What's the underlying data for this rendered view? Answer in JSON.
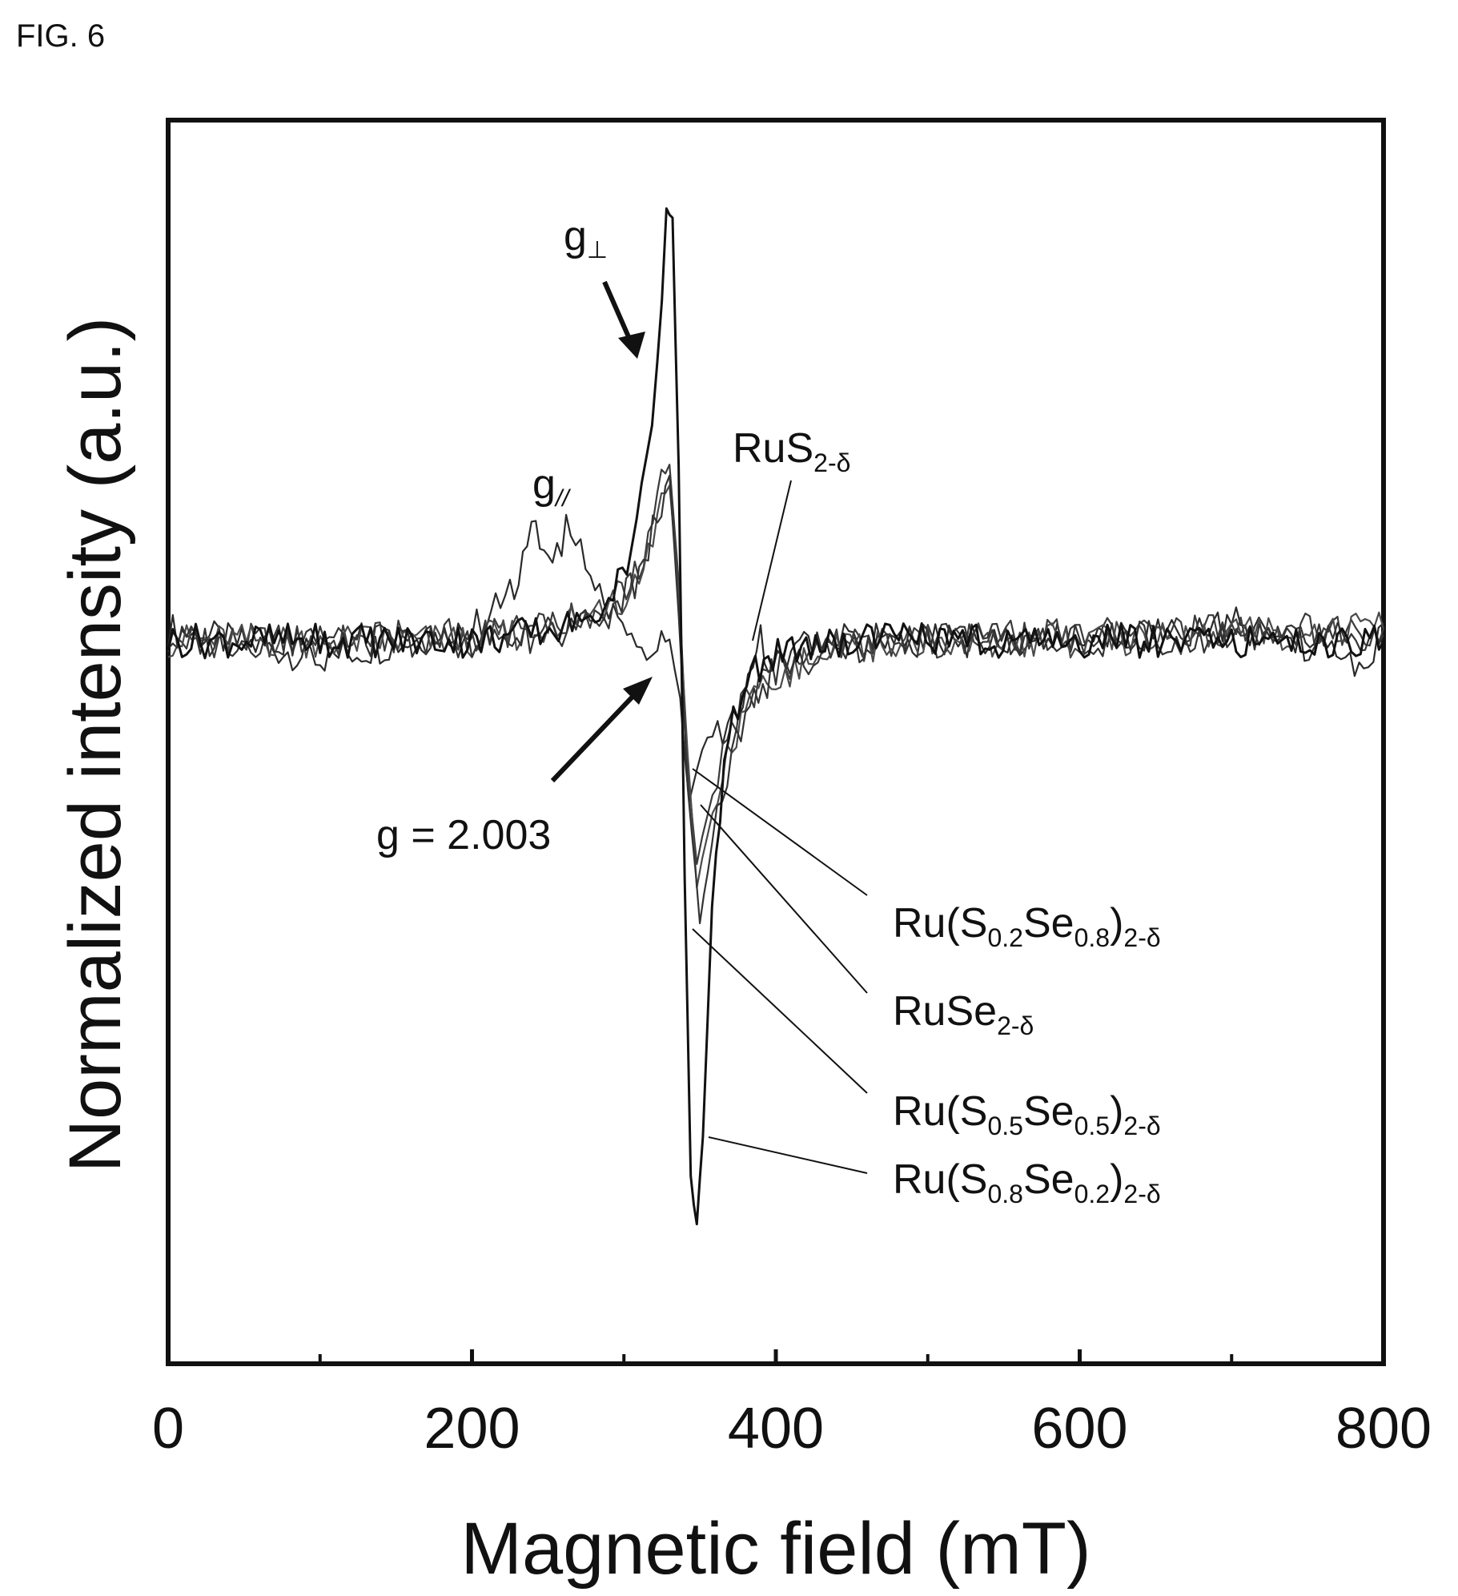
{
  "figure": {
    "label": "FIG. 6"
  },
  "chart_data": {
    "type": "line",
    "xlabel": "Magnetic field (mT)",
    "ylabel": "Normalized intensity (a.u.)",
    "xlim": [
      0,
      800
    ],
    "ylim": [
      -1.0,
      1.0
    ],
    "x_ticks": [
      0,
      200,
      400,
      600,
      800
    ],
    "x_tick_labels": [
      "0",
      "200",
      "400",
      "600",
      "800"
    ],
    "x_minor_ticks": [
      100,
      300,
      500,
      700
    ],
    "grid": false,
    "legend": "none",
    "series": [
      {
        "name": "RuS₂₋δ",
        "label": {
          "main": "RuS",
          "sub": "2-δ"
        },
        "color": "#2a2a2a",
        "x": [
          0,
          100,
          200,
          225,
          242,
          250,
          265,
          278,
          290,
          305,
          315,
          322,
          330,
          337,
          343,
          348,
          355,
          365,
          375,
          385,
          390,
          395,
          410,
          430,
          460,
          520,
          600,
          700,
          790,
          800
        ],
        "y": [
          0.02,
          -0.03,
          0.02,
          0.08,
          0.2,
          0.13,
          0.2,
          0.1,
          0.06,
          0.0,
          -0.04,
          -0.02,
          0.0,
          -0.1,
          -0.28,
          -0.22,
          -0.16,
          -0.17,
          -0.12,
          -0.05,
          0.0,
          -0.04,
          -0.02,
          0.0,
          0.0,
          0.0,
          0.0,
          0.03,
          -0.04,
          0.03
        ]
      },
      {
        "name": "Ru(S0.2Se0.8)2-δ",
        "label": {
          "main": "Ru(S",
          "sub1": "0.2",
          "mid": "Se",
          "sub2": "0.8",
          "end": ")",
          "sub3": "2-δ"
        },
        "color": "#3a3a3a",
        "x": [
          0,
          100,
          200,
          250,
          290,
          310,
          322,
          330,
          336,
          342,
          348,
          355,
          365,
          380,
          400,
          440,
          500,
          600,
          700,
          800
        ],
        "y": [
          0.0,
          0.0,
          0.01,
          0.02,
          0.06,
          0.12,
          0.25,
          0.3,
          0.1,
          -0.22,
          -0.38,
          -0.3,
          -0.2,
          -0.1,
          -0.05,
          -0.01,
          0.0,
          0.01,
          0.02,
          0.02
        ]
      },
      {
        "name": "RuSe2-δ",
        "label": {
          "main": "RuSe",
          "sub": "2-δ"
        },
        "color": "#4a4a4a",
        "x": [
          0,
          100,
          200,
          250,
          290,
          310,
          322,
          330,
          336,
          342,
          348,
          355,
          365,
          380,
          400,
          440,
          500,
          600,
          700,
          800
        ],
        "y": [
          0.0,
          0.0,
          0.0,
          0.02,
          0.05,
          0.1,
          0.2,
          0.27,
          0.08,
          -0.2,
          -0.42,
          -0.33,
          -0.22,
          -0.12,
          -0.06,
          -0.02,
          0.0,
          0.0,
          0.01,
          0.02
        ]
      },
      {
        "name": "Ru(S0.5Se0.5)2-δ",
        "label": {
          "main": "Ru(S",
          "sub1": "0.5",
          "mid": "Se",
          "sub2": "0.5",
          "end": ")",
          "sub3": "2-δ"
        },
        "color": "#333333",
        "x": [
          0,
          100,
          200,
          250,
          290,
          310,
          322,
          330,
          336,
          342,
          350,
          358,
          368,
          380,
          400,
          440,
          500,
          600,
          700,
          800
        ],
        "y": [
          0.0,
          0.0,
          0.0,
          0.01,
          0.05,
          0.11,
          0.22,
          0.28,
          0.05,
          -0.25,
          -0.48,
          -0.35,
          -0.22,
          -0.12,
          -0.05,
          -0.01,
          0.0,
          0.0,
          0.01,
          0.01
        ]
      },
      {
        "name": "Ru(S0.8Se0.2)2-δ",
        "label": {
          "main": "Ru(S",
          "sub1": "0.8",
          "mid": "Se",
          "sub2": "0.2",
          "end": ")",
          "sub3": "2-δ"
        },
        "color": "#111111",
        "x": [
          0,
          100,
          200,
          260,
          290,
          305,
          315,
          322,
          328,
          332,
          336,
          340,
          344,
          348,
          352,
          358,
          366,
          378,
          395,
          420,
          460,
          520,
          600,
          700,
          800
        ],
        "y": [
          0.0,
          0.0,
          0.0,
          0.02,
          0.06,
          0.15,
          0.3,
          0.48,
          0.74,
          0.72,
          0.3,
          -0.4,
          -0.92,
          -1.0,
          -0.85,
          -0.45,
          -0.2,
          -0.08,
          -0.03,
          -0.01,
          0.0,
          0.0,
          0.0,
          0.0,
          0.0
        ]
      }
    ],
    "annotations": [
      {
        "id": "g-perp",
        "main": "g",
        "sub": "⊥"
      },
      {
        "id": "g-par",
        "main": "g",
        "sub": "//"
      },
      {
        "id": "g-value",
        "text": "g = 2.003"
      }
    ]
  }
}
